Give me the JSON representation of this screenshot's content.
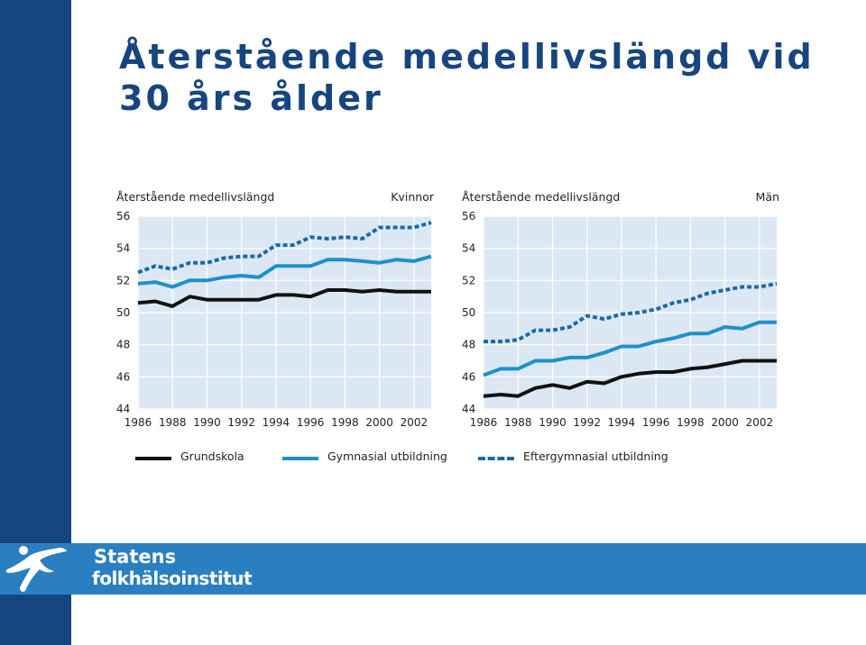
{
  "slide": {
    "title_line1": "Återstående medellivslängd vid",
    "title_line2": "30 års ålder"
  },
  "colors": {
    "brand": "#17457f",
    "footer": "#2a7fc1",
    "plot_bg": "#dbe8f4",
    "grundskola": "#111111",
    "gymnasial": "#1e90cc",
    "eftergymnasial": "#1b6aa5"
  },
  "chart_data": [
    {
      "type": "line",
      "title": "Återstående medellivslängd",
      "group_label": "Kvinnor",
      "ylim": [
        44,
        56
      ],
      "yticks": [
        44,
        46,
        48,
        50,
        52,
        54,
        56
      ],
      "xticks": [
        1986,
        1988,
        1990,
        1992,
        1994,
        1996,
        1998,
        2000,
        2002
      ],
      "xlim": [
        1986,
        2003
      ],
      "grid": true,
      "x": [
        1986,
        1987,
        1988,
        1989,
        1990,
        1991,
        1992,
        1993,
        1994,
        1995,
        1996,
        1997,
        1998,
        1999,
        2000,
        2001,
        2002,
        2003
      ],
      "series": [
        {
          "name": "Grundskola",
          "style": "solid",
          "values": [
            50.6,
            50.7,
            50.4,
            51.0,
            50.8,
            50.8,
            50.8,
            50.8,
            51.1,
            51.1,
            51.0,
            51.4,
            51.4,
            51.3,
            51.4,
            51.3,
            51.3,
            51.3
          ]
        },
        {
          "name": "Gymnasial utbildning",
          "style": "solid",
          "values": [
            51.8,
            51.9,
            51.6,
            52.0,
            52.0,
            52.2,
            52.3,
            52.2,
            52.9,
            52.9,
            52.9,
            53.3,
            53.3,
            53.2,
            53.1,
            53.3,
            53.2,
            53.5
          ]
        },
        {
          "name": "Eftergymnasial utbildning",
          "style": "dashed",
          "values": [
            52.5,
            52.9,
            52.7,
            53.1,
            53.1,
            53.4,
            53.5,
            53.5,
            54.2,
            54.2,
            54.7,
            54.6,
            54.7,
            54.6,
            55.3,
            55.3,
            55.3,
            55.6
          ]
        }
      ]
    },
    {
      "type": "line",
      "title": "Återstående medellivslängd",
      "group_label": "Män",
      "ylim": [
        44,
        56
      ],
      "yticks": [
        44,
        46,
        48,
        50,
        52,
        54,
        56
      ],
      "xticks": [
        1986,
        1988,
        1990,
        1992,
        1994,
        1996,
        1998,
        2000,
        2002
      ],
      "xlim": [
        1986,
        2003
      ],
      "grid": true,
      "x": [
        1986,
        1987,
        1988,
        1989,
        1990,
        1991,
        1992,
        1993,
        1994,
        1995,
        1996,
        1997,
        1998,
        1999,
        2000,
        2001,
        2002,
        2003
      ],
      "series": [
        {
          "name": "Grundskola",
          "style": "solid",
          "values": [
            44.8,
            44.9,
            44.8,
            45.3,
            45.5,
            45.3,
            45.7,
            45.6,
            46.0,
            46.2,
            46.3,
            46.3,
            46.5,
            46.6,
            46.8,
            47.0,
            47.0,
            47.0
          ]
        },
        {
          "name": "Gymnasial utbildning",
          "style": "solid",
          "values": [
            46.1,
            46.5,
            46.5,
            47.0,
            47.0,
            47.2,
            47.2,
            47.5,
            47.9,
            47.9,
            48.2,
            48.4,
            48.7,
            48.7,
            49.1,
            49.0,
            49.4,
            49.4
          ]
        },
        {
          "name": "Eftergymnasial utbildning",
          "style": "dashed",
          "values": [
            48.2,
            48.2,
            48.3,
            48.9,
            48.9,
            49.1,
            49.8,
            49.6,
            49.9,
            50.0,
            50.2,
            50.6,
            50.8,
            51.2,
            51.4,
            51.6,
            51.6,
            51.8
          ]
        }
      ]
    }
  ],
  "legend": [
    {
      "label": "Grundskola",
      "style": "solid",
      "color": "#111111"
    },
    {
      "label": "Gymnasial utbildning",
      "style": "solid",
      "color": "#1e90cc"
    },
    {
      "label": "Eftergymnasial utbildning",
      "style": "dashed",
      "color": "#1b6aa5"
    }
  ],
  "logo": {
    "line1": "Statens",
    "line2": "folkhälsoinstitut"
  }
}
